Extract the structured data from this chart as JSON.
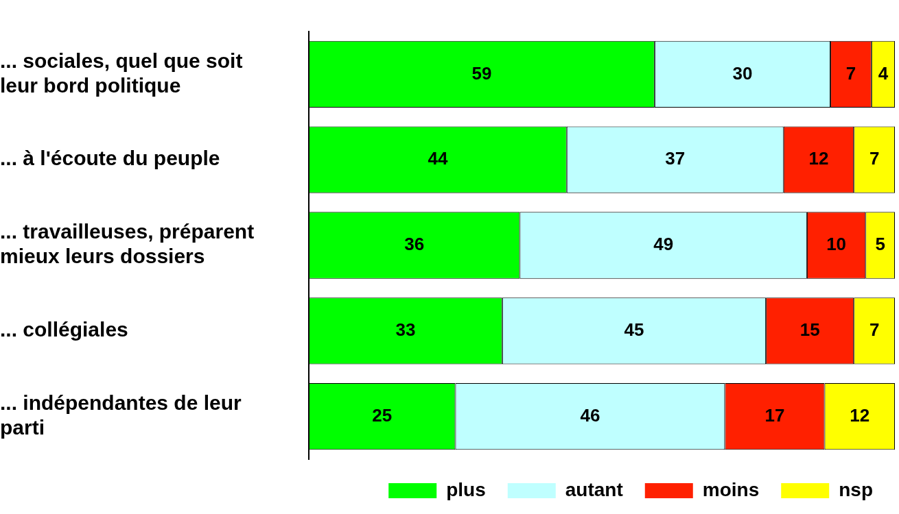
{
  "chart_data": {
    "type": "bar",
    "orientation": "horizontal",
    "stacked": true,
    "data_labels": true,
    "legend": "bottom right",
    "categories": [
      "... sociales, quel que soit leur bord politique",
      "... à l'écoute du peuple",
      "... travailleuses, préparent mieux leurs dossiers",
      "... collégiales",
      "... indépendantes de leur parti"
    ],
    "series": [
      {
        "name": "plus",
        "color": "#00ff00",
        "values": [
          59,
          44,
          36,
          33,
          25
        ]
      },
      {
        "name": "autant",
        "color": "#bfffff",
        "values": [
          30,
          37,
          49,
          45,
          46
        ]
      },
      {
        "name": "moins",
        "color": "#ff2000",
        "values": [
          7,
          12,
          10,
          15,
          17
        ]
      },
      {
        "name": "nsp",
        "color": "#ffff00",
        "values": [
          4,
          7,
          5,
          7,
          12
        ]
      }
    ]
  }
}
